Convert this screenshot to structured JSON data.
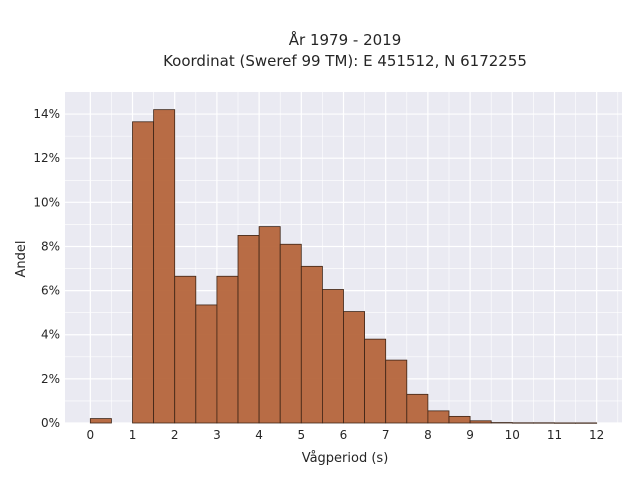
{
  "chart_data": {
    "type": "bar",
    "title": "År 1979 - 2019",
    "subtitle": "Koordinat (Sweref 99 TM): E 451512, N 6172255",
    "xlabel": "Vågperiod (s)",
    "ylabel": "Andel",
    "xlim": [
      -0.6,
      12.6
    ],
    "ylim": [
      0,
      0.15
    ],
    "x_ticks": [
      0,
      1,
      2,
      3,
      4,
      5,
      6,
      7,
      8,
      9,
      10,
      11,
      12
    ],
    "x_tick_labels": [
      "0",
      "1",
      "2",
      "3",
      "4",
      "5",
      "6",
      "7",
      "8",
      "9",
      "10",
      "11",
      "12"
    ],
    "y_ticks": [
      0,
      0.02,
      0.04,
      0.06,
      0.08,
      0.1,
      0.12,
      0.14
    ],
    "y_tick_labels": [
      "0%",
      "2%",
      "4%",
      "6%",
      "8%",
      "10%",
      "12%",
      "14%"
    ],
    "grid": true,
    "bin_width": 0.5,
    "bins": [
      {
        "x0": 0.0,
        "value": 0.002
      },
      {
        "x0": 1.0,
        "value": 0.1365
      },
      {
        "x0": 1.5,
        "value": 0.142
      },
      {
        "x0": 2.0,
        "value": 0.0665
      },
      {
        "x0": 2.5,
        "value": 0.0535
      },
      {
        "x0": 3.0,
        "value": 0.0665
      },
      {
        "x0": 3.5,
        "value": 0.085
      },
      {
        "x0": 4.0,
        "value": 0.089
      },
      {
        "x0": 4.5,
        "value": 0.081
      },
      {
        "x0": 5.0,
        "value": 0.071
      },
      {
        "x0": 5.5,
        "value": 0.0605
      },
      {
        "x0": 6.0,
        "value": 0.0505
      },
      {
        "x0": 6.5,
        "value": 0.038
      },
      {
        "x0": 7.0,
        "value": 0.0285
      },
      {
        "x0": 7.5,
        "value": 0.013
      },
      {
        "x0": 8.0,
        "value": 0.0055
      },
      {
        "x0": 8.5,
        "value": 0.003
      },
      {
        "x0": 9.0,
        "value": 0.001
      },
      {
        "x0": 9.5,
        "value": 0.0002
      },
      {
        "x0": 10.0,
        "value": 0.0001
      },
      {
        "x0": 10.5,
        "value": 0.0001
      },
      {
        "x0": 11.0,
        "value": 5e-05
      },
      {
        "x0": 11.5,
        "value": 5e-05
      }
    ],
    "colors": {
      "bar_fill": "#b5653b",
      "bar_edge": "#3d2416",
      "plot_background": "#eaeaf2",
      "grid": "#ffffff"
    }
  }
}
